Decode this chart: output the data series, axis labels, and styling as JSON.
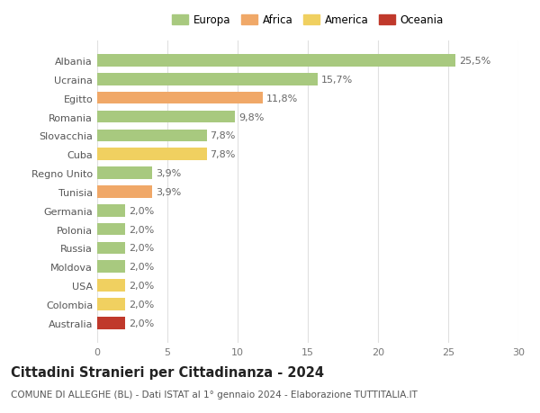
{
  "countries": [
    "Albania",
    "Ucraina",
    "Egitto",
    "Romania",
    "Slovacchia",
    "Cuba",
    "Regno Unito",
    "Tunisia",
    "Germania",
    "Polonia",
    "Russia",
    "Moldova",
    "USA",
    "Colombia",
    "Australia"
  ],
  "values": [
    25.5,
    15.7,
    11.8,
    9.8,
    7.8,
    7.8,
    3.9,
    3.9,
    2.0,
    2.0,
    2.0,
    2.0,
    2.0,
    2.0,
    2.0
  ],
  "labels": [
    "25,5%",
    "15,7%",
    "11,8%",
    "9,8%",
    "7,8%",
    "7,8%",
    "3,9%",
    "3,9%",
    "2,0%",
    "2,0%",
    "2,0%",
    "2,0%",
    "2,0%",
    "2,0%",
    "2,0%"
  ],
  "continents": [
    "Europa",
    "Europa",
    "Africa",
    "Europa",
    "Europa",
    "America",
    "Europa",
    "Africa",
    "Europa",
    "Europa",
    "Europa",
    "Europa",
    "America",
    "America",
    "Oceania"
  ],
  "continent_colors": {
    "Europa": "#a8c97f",
    "Africa": "#f0a868",
    "America": "#f0d060",
    "Oceania": "#c0392b"
  },
  "legend_order": [
    "Europa",
    "Africa",
    "America",
    "Oceania"
  ],
  "legend_colors": [
    "#a8c97f",
    "#f0a868",
    "#f0d060",
    "#c0392b"
  ],
  "title": "Cittadini Stranieri per Cittadinanza - 2024",
  "subtitle": "COMUNE DI ALLEGHE (BL) - Dati ISTAT al 1° gennaio 2024 - Elaborazione TUTTITALIA.IT",
  "xlim": [
    0,
    30
  ],
  "xticks": [
    0,
    5,
    10,
    15,
    20,
    25,
    30
  ],
  "background_color": "#ffffff",
  "grid_color": "#e0e0e0",
  "bar_height": 0.65,
  "title_fontsize": 10.5,
  "subtitle_fontsize": 7.5,
  "tick_fontsize": 8,
  "value_label_fontsize": 8
}
